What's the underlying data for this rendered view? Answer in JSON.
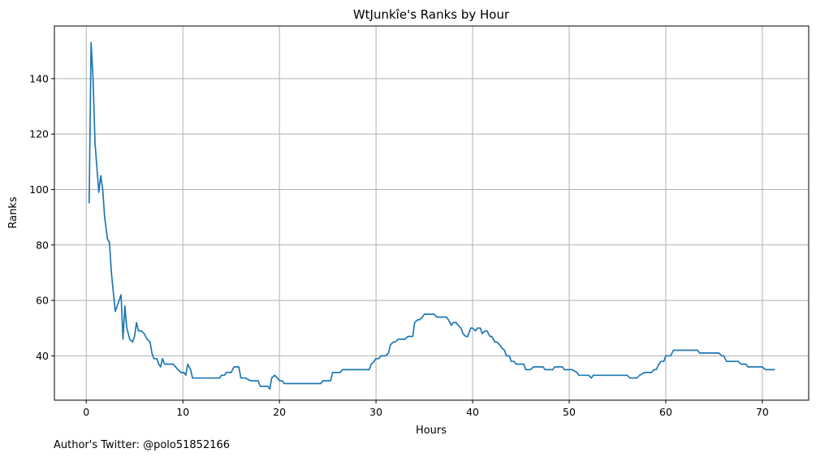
{
  "chart_data": {
    "type": "line",
    "title": "WtJunkîe's Ranks by Hour",
    "xlabel": "Hours",
    "ylabel": "Ranks",
    "xlim": [
      -3.3,
      74.8
    ],
    "ylim": [
      24,
      159
    ],
    "xticks": [
      0,
      10,
      20,
      30,
      40,
      50,
      60,
      70
    ],
    "yticks": [
      40,
      60,
      80,
      100,
      120,
      140
    ],
    "grid": true,
    "series": [
      {
        "color": "#1f77b4",
        "points": [
          [
            0.3,
            95
          ],
          [
            0.5,
            153
          ],
          [
            0.7,
            140
          ],
          [
            0.9,
            117
          ],
          [
            1.1,
            108
          ],
          [
            1.3,
            99
          ],
          [
            1.5,
            105
          ],
          [
            1.7,
            100
          ],
          [
            1.9,
            90
          ],
          [
            2.2,
            82
          ],
          [
            2.4,
            81
          ],
          [
            2.6,
            70
          ],
          [
            2.8,
            63
          ],
          [
            3.0,
            56
          ],
          [
            3.2,
            58
          ],
          [
            3.4,
            60
          ],
          [
            3.6,
            62
          ],
          [
            3.8,
            46
          ],
          [
            4.0,
            58
          ],
          [
            4.2,
            50
          ],
          [
            4.5,
            46
          ],
          [
            4.8,
            45
          ],
          [
            5.0,
            47
          ],
          [
            5.2,
            52
          ],
          [
            5.4,
            49
          ],
          [
            5.7,
            49
          ],
          [
            6.0,
            48
          ],
          [
            6.3,
            46
          ],
          [
            6.6,
            45
          ],
          [
            6.8,
            41
          ],
          [
            7.0,
            39
          ],
          [
            7.3,
            39
          ],
          [
            7.5,
            37
          ],
          [
            7.7,
            36
          ],
          [
            7.9,
            39
          ],
          [
            8.1,
            37
          ],
          [
            8.5,
            37
          ],
          [
            9.0,
            37
          ],
          [
            9.5,
            35
          ],
          [
            9.8,
            34
          ],
          [
            10.1,
            34
          ],
          [
            10.3,
            33
          ],
          [
            10.5,
            37
          ],
          [
            10.8,
            35
          ],
          [
            11.0,
            32
          ],
          [
            11.5,
            32
          ],
          [
            12.0,
            32
          ],
          [
            12.5,
            32
          ],
          [
            13.0,
            32
          ],
          [
            13.5,
            32
          ],
          [
            13.8,
            32
          ],
          [
            14.0,
            33
          ],
          [
            14.3,
            33
          ],
          [
            14.5,
            34
          ],
          [
            15.0,
            34
          ],
          [
            15.3,
            36
          ],
          [
            15.8,
            36
          ],
          [
            16.0,
            32
          ],
          [
            16.5,
            32
          ],
          [
            17.0,
            31
          ],
          [
            17.3,
            31
          ],
          [
            17.8,
            31
          ],
          [
            18.0,
            29
          ],
          [
            18.5,
            29
          ],
          [
            18.8,
            29
          ],
          [
            19.0,
            28
          ],
          [
            19.2,
            32
          ],
          [
            19.5,
            33
          ],
          [
            19.8,
            32
          ],
          [
            20.0,
            31
          ],
          [
            20.3,
            31
          ],
          [
            20.5,
            30
          ],
          [
            21.0,
            30
          ],
          [
            22.0,
            30
          ],
          [
            23.0,
            30
          ],
          [
            24.0,
            30
          ],
          [
            24.3,
            30
          ],
          [
            24.5,
            31
          ],
          [
            25.0,
            31
          ],
          [
            25.3,
            31
          ],
          [
            25.5,
            34
          ],
          [
            26.0,
            34
          ],
          [
            26.3,
            34
          ],
          [
            26.5,
            35
          ],
          [
            27.0,
            35
          ],
          [
            28.0,
            35
          ],
          [
            28.5,
            35
          ],
          [
            29.0,
            35
          ],
          [
            29.3,
            35
          ],
          [
            29.5,
            37
          ],
          [
            29.8,
            38
          ],
          [
            30.0,
            39
          ],
          [
            30.3,
            39
          ],
          [
            30.5,
            40
          ],
          [
            31.0,
            40
          ],
          [
            31.3,
            41
          ],
          [
            31.5,
            44
          ],
          [
            31.8,
            45
          ],
          [
            32.0,
            45
          ],
          [
            32.3,
            46
          ],
          [
            32.5,
            46
          ],
          [
            33.0,
            46
          ],
          [
            33.3,
            47
          ],
          [
            33.8,
            47
          ],
          [
            34.0,
            52
          ],
          [
            34.3,
            53
          ],
          [
            34.5,
            53
          ],
          [
            34.8,
            54
          ],
          [
            35.0,
            55
          ],
          [
            35.5,
            55
          ],
          [
            36.0,
            55
          ],
          [
            36.3,
            54
          ],
          [
            36.8,
            54
          ],
          [
            37.3,
            54
          ],
          [
            37.5,
            53
          ],
          [
            37.8,
            51
          ],
          [
            38.0,
            52
          ],
          [
            38.3,
            52
          ],
          [
            38.5,
            51
          ],
          [
            38.8,
            50
          ],
          [
            39.0,
            48
          ],
          [
            39.3,
            47
          ],
          [
            39.5,
            47
          ],
          [
            39.8,
            50
          ],
          [
            40.0,
            50
          ],
          [
            40.3,
            49
          ],
          [
            40.5,
            50
          ],
          [
            40.8,
            50
          ],
          [
            41.0,
            48
          ],
          [
            41.3,
            49
          ],
          [
            41.5,
            49
          ],
          [
            41.8,
            47
          ],
          [
            42.0,
            47
          ],
          [
            42.3,
            45
          ],
          [
            42.5,
            45
          ],
          [
            42.8,
            44
          ],
          [
            43.0,
            43
          ],
          [
            43.3,
            42
          ],
          [
            43.5,
            40
          ],
          [
            43.8,
            40
          ],
          [
            44.0,
            38
          ],
          [
            44.3,
            38
          ],
          [
            44.5,
            37
          ],
          [
            45.0,
            37
          ],
          [
            45.3,
            37
          ],
          [
            45.5,
            35
          ],
          [
            46.0,
            35
          ],
          [
            46.3,
            36
          ],
          [
            47.0,
            36
          ],
          [
            47.3,
            36
          ],
          [
            47.5,
            35
          ],
          [
            48.0,
            35
          ],
          [
            48.3,
            35
          ],
          [
            48.5,
            36
          ],
          [
            49.0,
            36
          ],
          [
            49.3,
            36
          ],
          [
            49.5,
            35
          ],
          [
            50.0,
            35
          ],
          [
            50.3,
            35
          ],
          [
            50.8,
            34
          ],
          [
            51.0,
            33
          ],
          [
            51.5,
            33
          ],
          [
            52.0,
            33
          ],
          [
            52.3,
            32
          ],
          [
            52.5,
            33
          ],
          [
            53.0,
            33
          ],
          [
            54.0,
            33
          ],
          [
            55.0,
            33
          ],
          [
            56.0,
            33
          ],
          [
            56.3,
            32
          ],
          [
            56.8,
            32
          ],
          [
            57.0,
            32
          ],
          [
            57.3,
            33
          ],
          [
            57.8,
            34
          ],
          [
            58.0,
            34
          ],
          [
            58.5,
            34
          ],
          [
            58.8,
            35
          ],
          [
            59.0,
            35
          ],
          [
            59.3,
            37
          ],
          [
            59.5,
            38
          ],
          [
            59.8,
            38
          ],
          [
            60.0,
            40
          ],
          [
            60.5,
            40
          ],
          [
            60.8,
            42
          ],
          [
            61.0,
            42
          ],
          [
            62.0,
            42
          ],
          [
            63.0,
            42
          ],
          [
            63.3,
            42
          ],
          [
            63.5,
            41
          ],
          [
            64.0,
            41
          ],
          [
            65.0,
            41
          ],
          [
            65.5,
            41
          ],
          [
            65.8,
            40
          ],
          [
            66.0,
            40
          ],
          [
            66.3,
            38
          ],
          [
            67.0,
            38
          ],
          [
            67.5,
            38
          ],
          [
            67.8,
            37
          ],
          [
            68.0,
            37
          ],
          [
            68.3,
            37
          ],
          [
            68.5,
            36
          ],
          [
            69.0,
            36
          ],
          [
            69.5,
            36
          ],
          [
            70.0,
            36
          ],
          [
            70.3,
            35
          ],
          [
            70.5,
            35
          ],
          [
            71.0,
            35
          ],
          [
            71.3,
            35
          ]
        ]
      }
    ]
  },
  "footer": {
    "text": "Author's Twitter: @polo51852166"
  }
}
